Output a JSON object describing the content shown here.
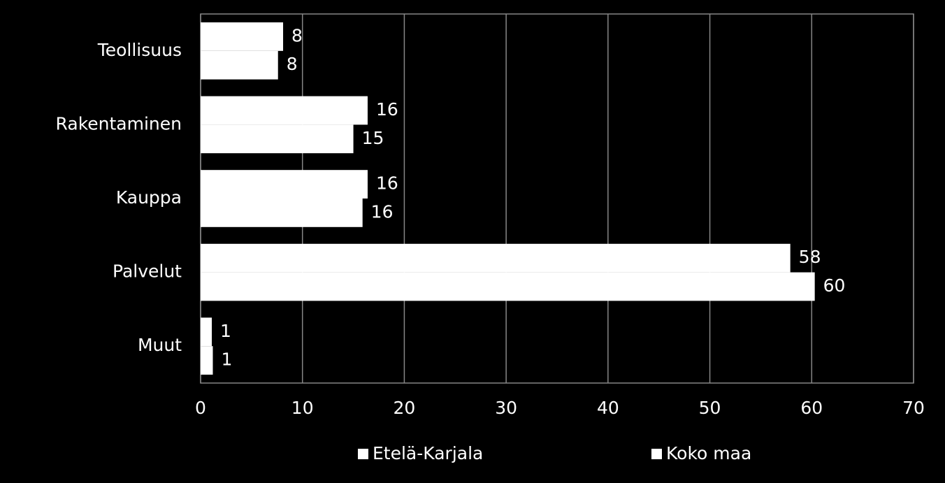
{
  "chart_data": {
    "type": "hbar",
    "categories": [
      "Teollisuus",
      "Rakentaminen",
      "Kauppa",
      "Palvelut",
      "Muut"
    ],
    "series": [
      {
        "name": "Etelä-Karjala",
        "color": "#ffffff",
        "values": [
          8.1,
          16.4,
          16.4,
          57.9,
          1.1
        ],
        "value_labels": [
          "8",
          "16",
          "16",
          "58",
          "1"
        ]
      },
      {
        "name": "Koko maa",
        "color": "#ffffff",
        "values": [
          7.6,
          15.0,
          15.9,
          60.3,
          1.2
        ],
        "value_labels": [
          "8",
          "15",
          "16",
          "60",
          "1"
        ]
      }
    ],
    "xlim": [
      0,
      70
    ],
    "xticks": [
      0,
      10,
      20,
      30,
      40,
      50,
      60,
      70
    ],
    "grid": true,
    "legend": "bottom"
  }
}
